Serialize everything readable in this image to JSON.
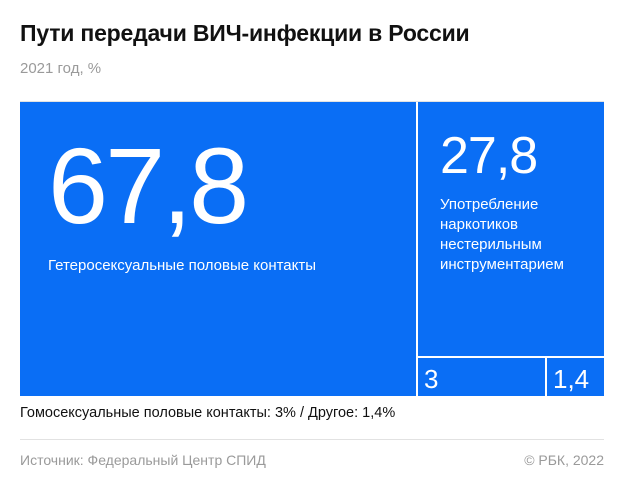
{
  "header": {
    "title": "Пути передачи ВИЧ-инфекции в России",
    "subtitle": "2021 год, %"
  },
  "chart_data": {
    "type": "treemap",
    "title": "Пути передачи ВИЧ-инфекции в России",
    "subtitle": "2021 год, %",
    "unit": "%",
    "color": "#0a6ef5",
    "items": [
      {
        "label": "Гетеросексуальные половые контакты",
        "value": 67.8,
        "value_text": "67,8"
      },
      {
        "label": "Употребление наркотиков нестерильным инструментарием",
        "value": 27.8,
        "value_text": "27,8"
      },
      {
        "label": "",
        "value": 3,
        "value_text": "3"
      },
      {
        "label": "",
        "value": 1.4,
        "value_text": "1,4"
      }
    ]
  },
  "footer": {
    "note": "Гомосексуальные половые контакты: 3% / Другое: 1,4%",
    "source": "Источник: Федеральный Центр СПИД",
    "credit": "© РБК, 2022"
  }
}
